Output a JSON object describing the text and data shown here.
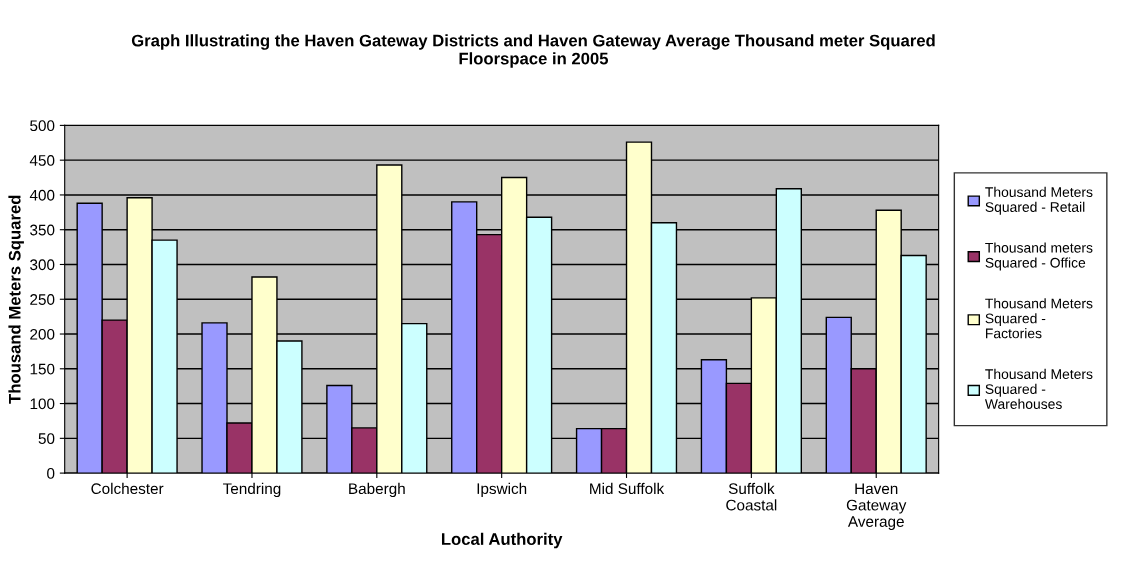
{
  "chart_data": {
    "type": "bar",
    "title": "Graph Illustrating the Haven Gateway Districts and Haven Gateway Average Thousand meter Squared Floorspace in 2005",
    "xlabel": "Local Authority",
    "ylabel": "Thousand Meters Squared",
    "categories": [
      "Colchester",
      "Tendring",
      "Babergh",
      "Ipswich",
      "Mid Suffolk",
      "Suffolk Coastal",
      "Haven Gateway Average"
    ],
    "series": [
      {
        "name": "Thousand Meters Squared - Retail",
        "color": "#9999ff",
        "values": [
          388,
          216,
          126,
          390,
          64,
          163,
          224
        ]
      },
      {
        "name": "Thousand meters Squared - Office",
        "color": "#993366",
        "values": [
          220,
          72,
          65,
          343,
          64,
          129,
          150
        ]
      },
      {
        "name": "Thousand Meters Squared - Factories",
        "color": "#ffffcc",
        "values": [
          396,
          282,
          443,
          425,
          476,
          252,
          378
        ]
      },
      {
        "name": "Thousand Meters Squared - Warehouses",
        "color": "#ccffff",
        "values": [
          335,
          190,
          215,
          368,
          360,
          409,
          313
        ]
      }
    ],
    "ylim": [
      0,
      500
    ],
    "yticks": [
      0,
      50,
      100,
      150,
      200,
      250,
      300,
      350,
      400,
      450,
      500
    ],
    "grid": "y",
    "legend": "right"
  }
}
